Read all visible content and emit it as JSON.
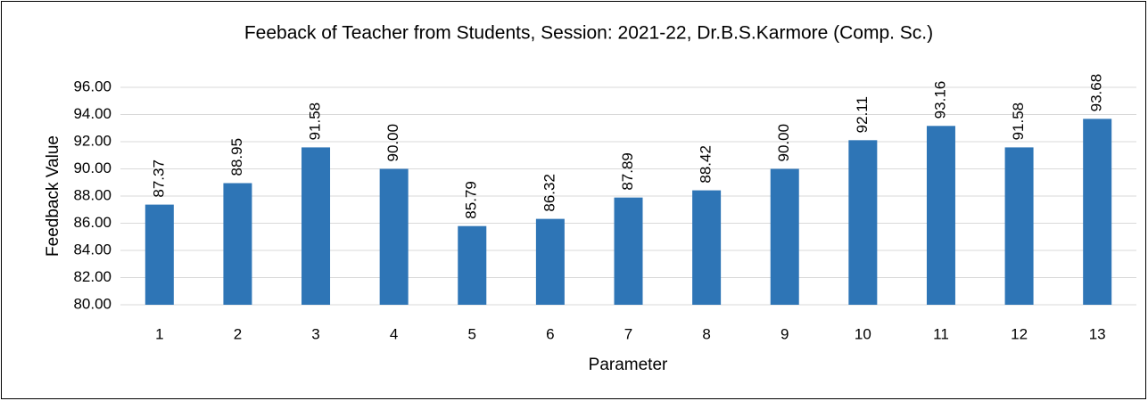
{
  "chart_data": {
    "type": "bar",
    "title": "Feeback of Teacher from Students, Session: 2021-22, Dr.B.S.Karmore (Comp. Sc.)",
    "x_label": "Parameter",
    "y_label": "Feedback Value",
    "categories": [
      "1",
      "2",
      "3",
      "4",
      "5",
      "6",
      "7",
      "8",
      "9",
      "10",
      "11",
      "12",
      "13"
    ],
    "values": [
      87.37,
      88.95,
      91.58,
      90,
      85.79,
      86.32,
      87.89,
      88.42,
      90,
      92.11,
      93.16,
      91.58,
      93.68
    ],
    "value_labels": [
      "87.37",
      "88.95",
      "91.58",
      "90.00",
      "85.79",
      "86.32",
      "87.89",
      "88.42",
      "90.00",
      "92.11",
      "93.16",
      "91.58",
      "93.68"
    ],
    "color": "#2e75b6",
    "ylim": [
      80,
      96
    ],
    "yticks": [
      {
        "value": 80,
        "label": "80.00"
      },
      {
        "value": 82,
        "label": "82.00"
      },
      {
        "value": 84,
        "label": "84.00"
      },
      {
        "value": 86,
        "label": "86.00"
      },
      {
        "value": 88,
        "label": "88.00"
      },
      {
        "value": 90,
        "label": "90.00"
      },
      {
        "value": 92,
        "label": "92.00"
      },
      {
        "value": 94,
        "label": "94.00"
      },
      {
        "value": 96,
        "label": "96.00"
      }
    ],
    "grid": true
  }
}
